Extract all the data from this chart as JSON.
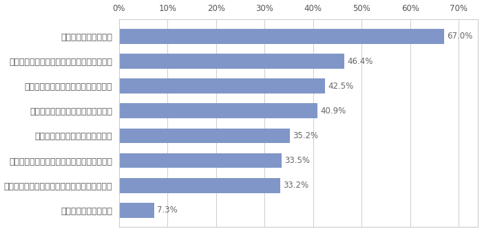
{
  "categories": [
    "あてはまるものはない",
    "劣化性能（老朽化の抑制、経年劣化への耐性）",
    "気密性（すき間をなくし、室内環境を保つ）",
    "換気性（空気の浄化・入れ換え）",
    "耐火性（火事に強い、延焼を防ぐ）",
    "省エネ（電気、ガスの消費を抑える）",
    "断熱性（外部の熱を遮断、内部の熱を守る）",
    "耐震性（地震に強い）"
  ],
  "values": [
    7.3,
    33.2,
    33.5,
    35.2,
    40.9,
    42.5,
    46.4,
    67.0
  ],
  "bar_color": "#8096c8",
  "label_color": "#555555",
  "value_label_color": "#666666",
  "background_color": "#ffffff",
  "grid_color": "#cccccc",
  "xlim": [
    0,
    74
  ],
  "xticks": [
    0,
    10,
    20,
    30,
    40,
    50,
    60,
    70
  ],
  "xtick_labels": [
    "0%",
    "10%",
    "20%",
    "30%",
    "40%",
    "50%",
    "60%",
    "70%"
  ],
  "value_label_fontsize": 8.5,
  "category_fontsize": 9,
  "tick_fontsize": 8.5
}
